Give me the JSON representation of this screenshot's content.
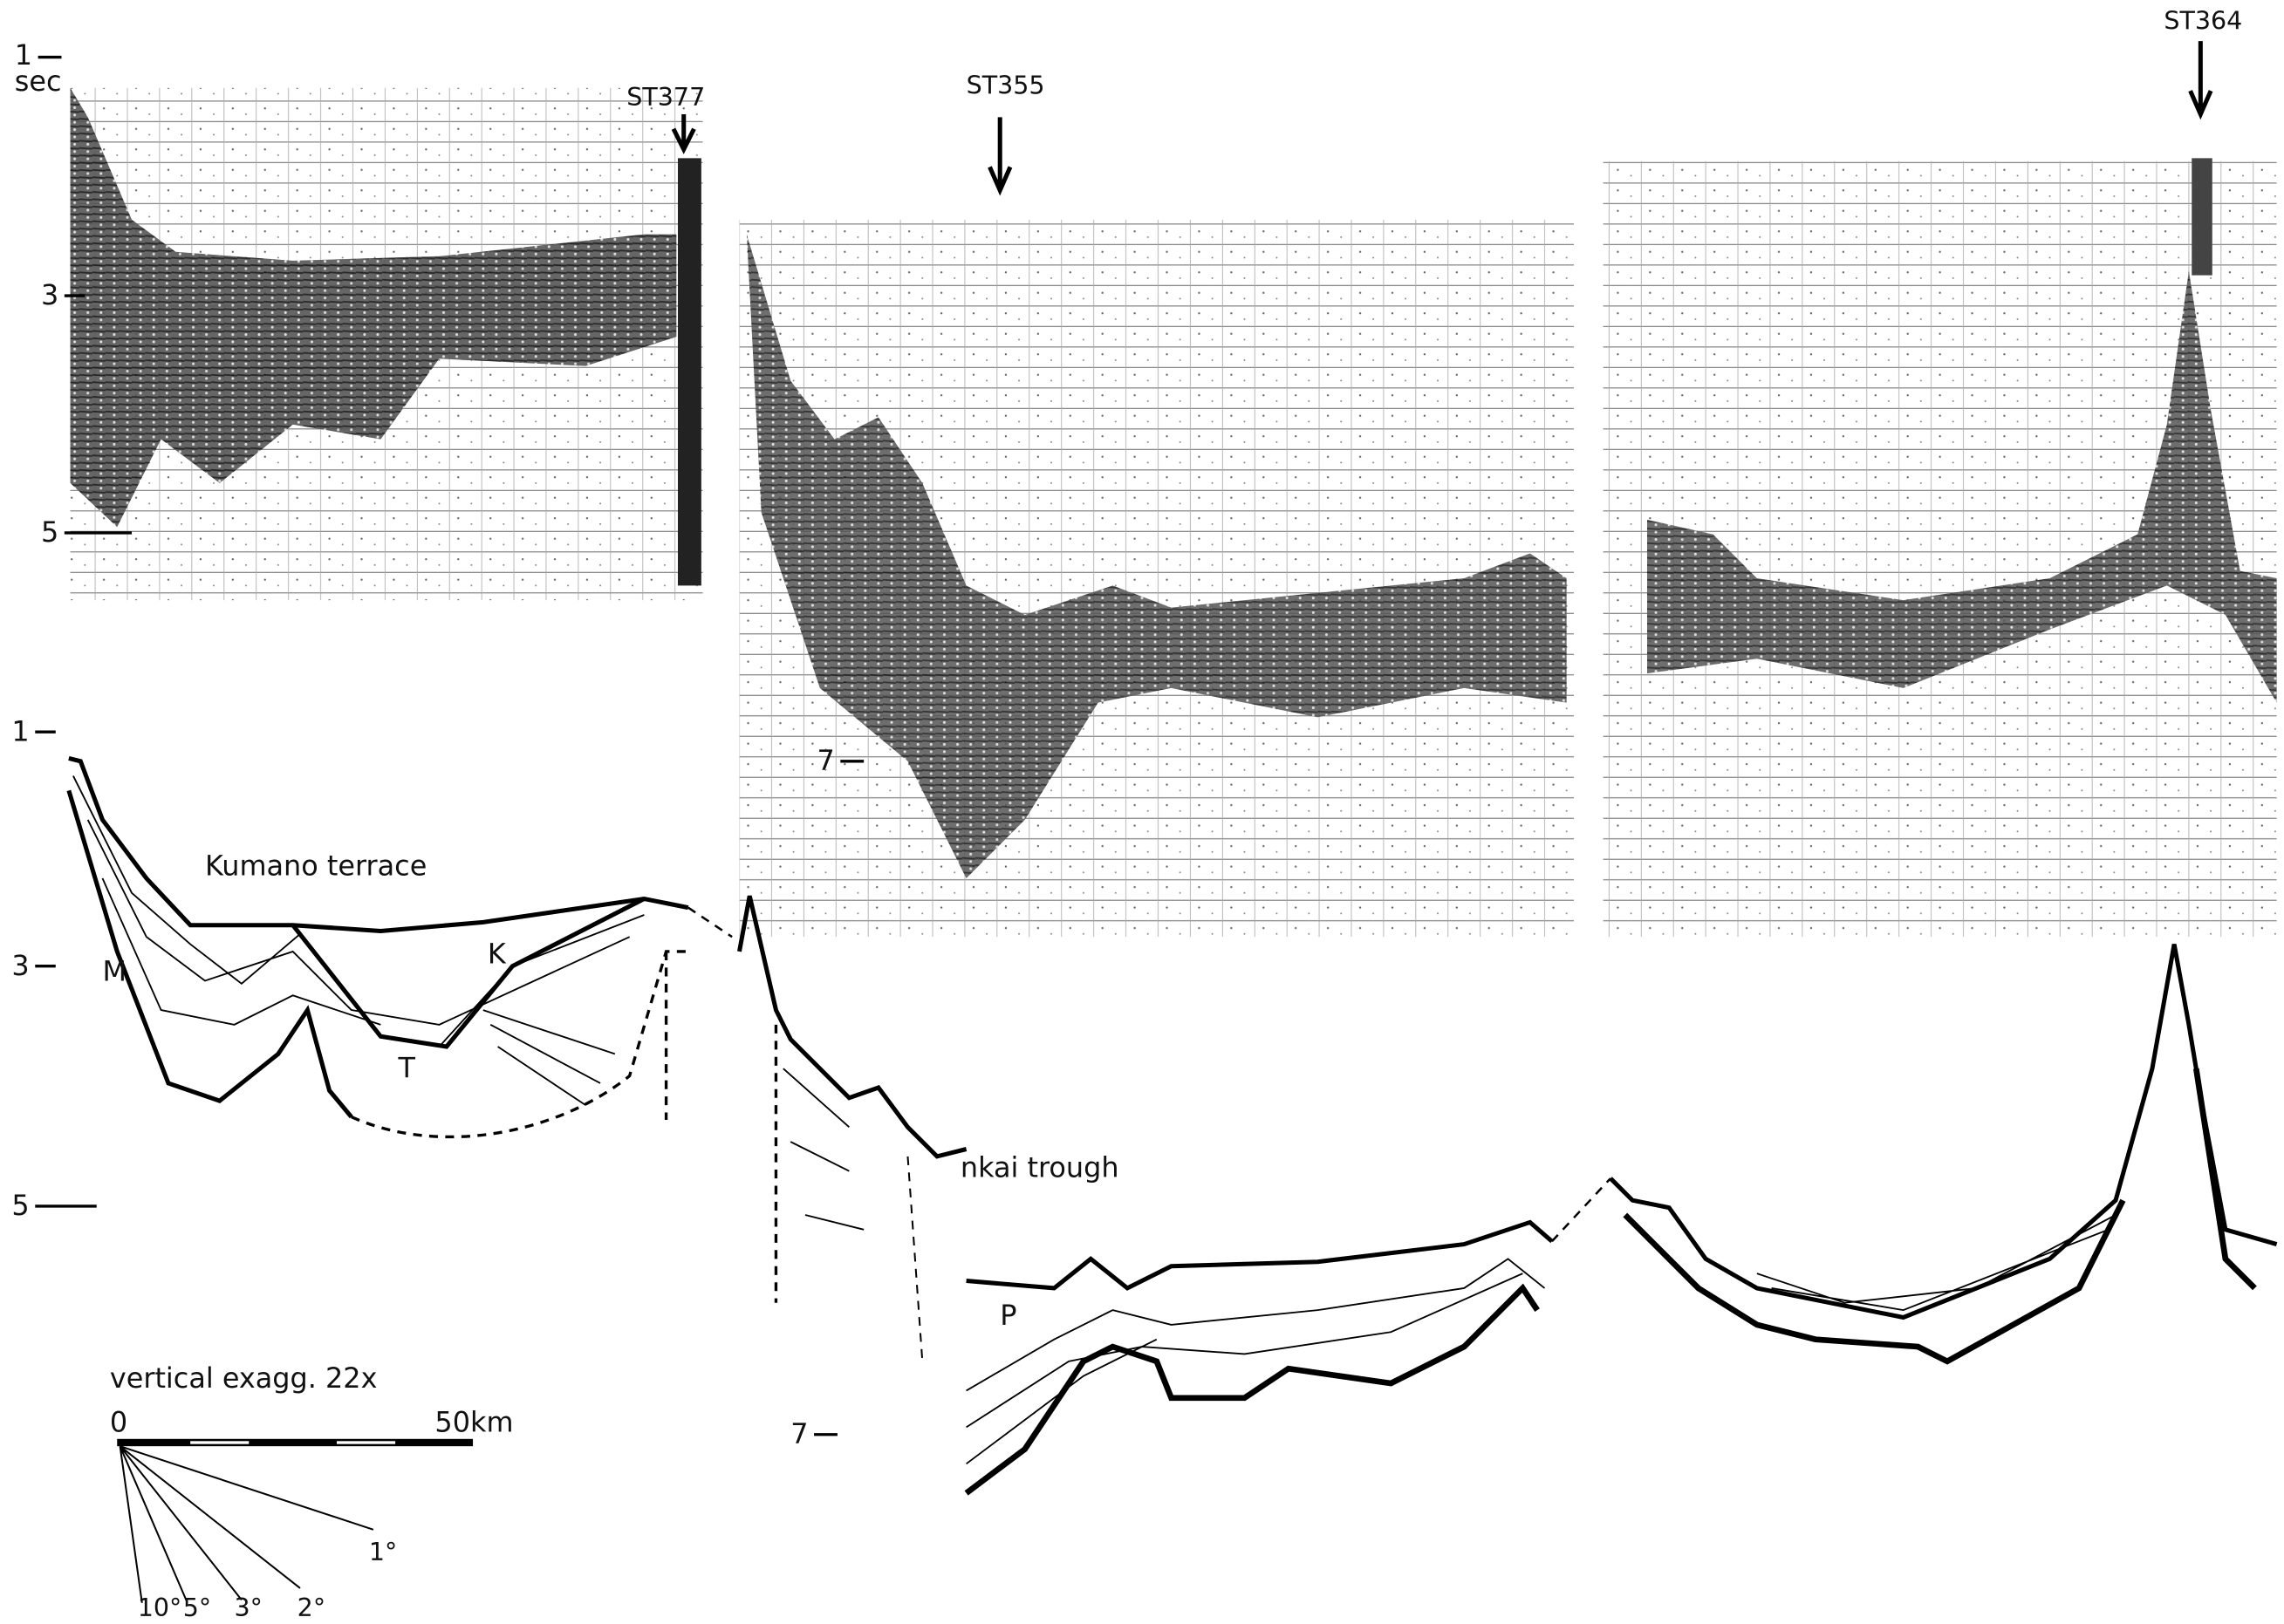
{
  "upper_profile": {
    "time_labels": [
      "1",
      "3",
      "5",
      "7"
    ],
    "unit": "sec",
    "stations": [
      "ST377",
      "ST355",
      "ST364"
    ]
  },
  "lower_profile": {
    "time_labels": [
      "1",
      "3",
      "5",
      "7"
    ],
    "labels": [
      "Kumano terrace",
      "M",
      "K",
      "T",
      "nkai trough",
      "P"
    ]
  },
  "scale": {
    "caption": "vertical exagg. 22x",
    "bar_start": "0",
    "bar_end": "50km",
    "slopes": [
      "1°",
      "2°",
      "3°",
      "5°",
      "10°"
    ]
  }
}
